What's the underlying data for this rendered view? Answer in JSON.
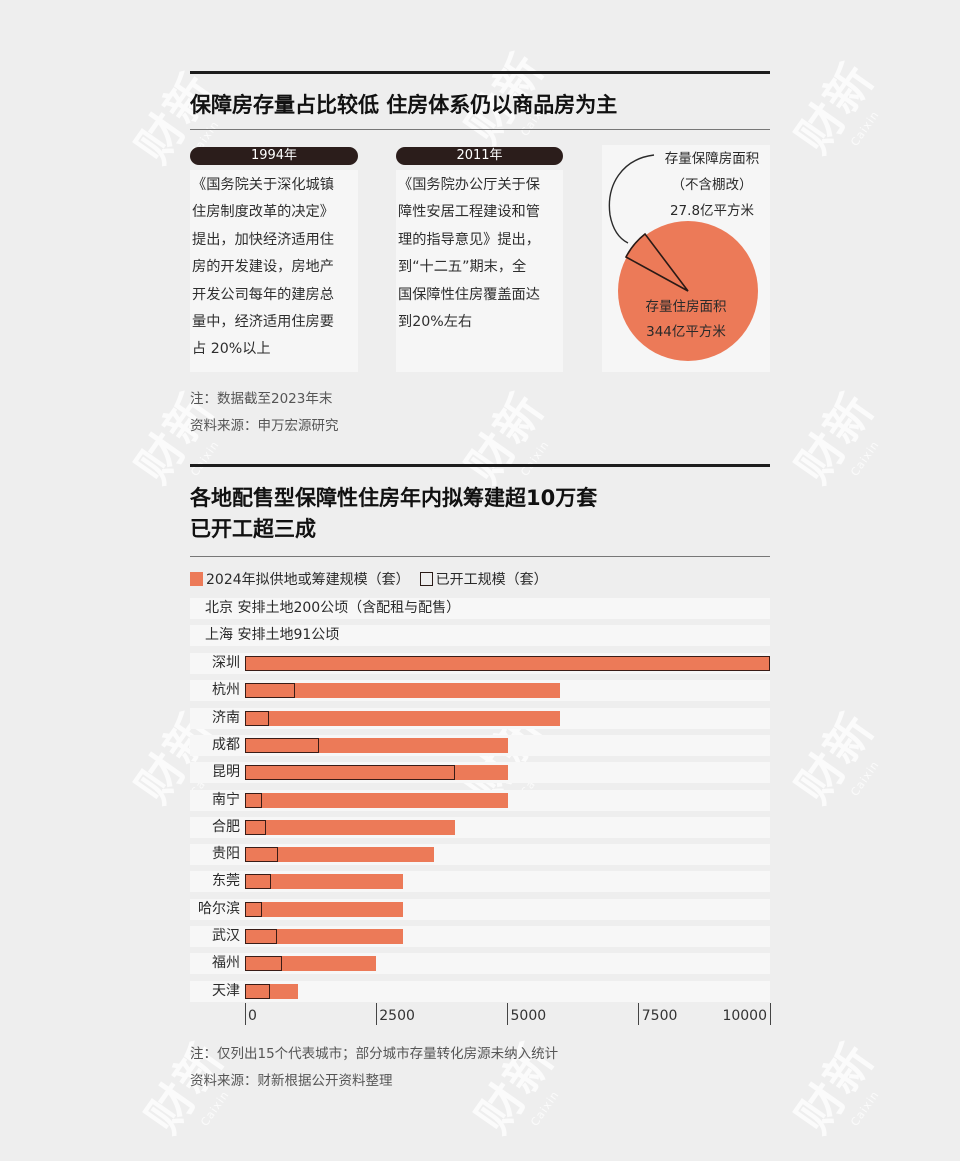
{
  "colors": {
    "background": "#eeeeee",
    "accent_bar": "#ec7a58",
    "pill": "#2b1d1b",
    "outline": "#3a1c16"
  },
  "watermark": {
    "text": "财新",
    "sub": "Caixin"
  },
  "section1": {
    "title": "保障房存量占比较低  住房体系仍以商品房为主",
    "cards": [
      {
        "year": "1994年",
        "lines": [
          "《国务院关于深化城镇",
          "住房制度改革的决定》",
          "提出，加快经济适用住",
          "房的开发建设，房地产",
          "开发公司每年的建房总",
          "量中，经济适用住房要",
          "占 20%以上"
        ]
      },
      {
        "year": "2011年",
        "lines": [
          "《国务院办公厅关于保",
          "障性安居工程建设和管",
          "理的指导意见》提出，",
          "到“十二五”期末，全",
          "国保障性住房覆盖面达",
          "到20%左右"
        ]
      }
    ],
    "pie": {
      "outer_label_1": "存量保障房面积",
      "outer_label_2": "（不含棚改）",
      "outer_value": "27.8亿平方米",
      "inner_label": "存量住房面积",
      "inner_value": "344亿平方米"
    },
    "note": "注：数据截至2023年末",
    "source": "资料来源：申万宏源研究"
  },
  "section2": {
    "title_line1": "各地配售型保障性住房年内拟筹建超10万套",
    "title_line2": "已开工超三成",
    "legend": {
      "planned": "2024年拟供地或筹建规模（套）",
      "started": "已开工规模（套）"
    },
    "text_rows": [
      {
        "city": "北京",
        "note": "安排土地200公顷（含配租与配售）"
      },
      {
        "city": "上海",
        "note": "安排土地91公顷"
      }
    ],
    "note": "注：仅列出15个代表城市；部分城市存量转化房源未纳入统计",
    "source": "资料来源：财新根据公开资料整理"
  },
  "chart_data": [
    {
      "type": "pie",
      "title": "保障房存量占比较低  住房体系仍以商品房为主",
      "labels": [
        "存量保障房面积（不含棚改）",
        "存量住房面积"
      ],
      "values": [
        27.8,
        344
      ],
      "unit": "亿平方米"
    },
    {
      "type": "bar",
      "orientation": "horizontal",
      "title": "各地配售型保障性住房年内拟筹建超10万套 已开工超三成",
      "categories": [
        "深圳",
        "杭州",
        "济南",
        "成都",
        "昆明",
        "南宁",
        "合肥",
        "贵阳",
        "东莞",
        "哈尔滨",
        "武汉",
        "福州",
        "天津"
      ],
      "series": [
        {
          "name": "2024年拟供地或筹建规模（套）",
          "values": [
            10000,
            6000,
            6000,
            5000,
            5000,
            5000,
            4000,
            3600,
            3000,
            3000,
            3000,
            2500,
            1000
          ]
        },
        {
          "name": "已开工规模（套）",
          "values": [
            10000,
            950,
            450,
            1400,
            4000,
            330,
            400,
            620,
            500,
            330,
            600,
            700,
            480
          ]
        }
      ],
      "xlim": [
        0,
        10000
      ],
      "xticks": [
        0,
        2500,
        5000,
        7500,
        10000
      ],
      "xlabel": "",
      "ylabel": "",
      "legend_position": "top-left",
      "grid": false
    }
  ]
}
